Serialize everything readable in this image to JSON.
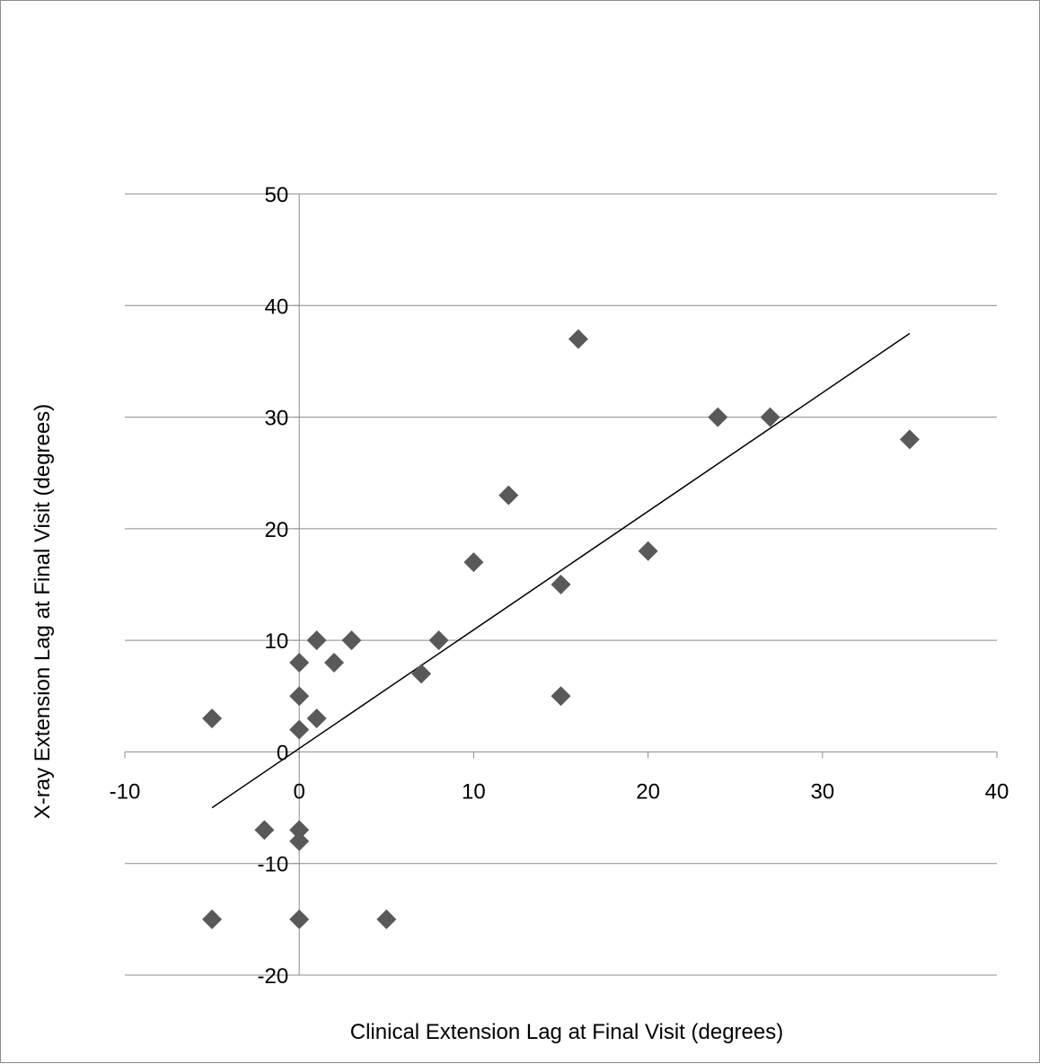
{
  "chart_data": {
    "type": "scatter",
    "title": "",
    "xlabel": "Clinical Extension Lag at Final Visit (degrees)",
    "ylabel": "X-ray Extension Lag at Final Visit (degrees)",
    "xlim": [
      -10,
      40
    ],
    "ylim": [
      -20,
      50
    ],
    "x_ticks": [
      -10,
      0,
      10,
      20,
      30,
      40
    ],
    "y_ticks": [
      -20,
      -10,
      0,
      10,
      20,
      30,
      40,
      50
    ],
    "x_tick_labels": [
      "-10",
      "0",
      "10",
      "20",
      "30",
      "40"
    ],
    "y_tick_labels": [
      "-20",
      "-10",
      "0",
      "10",
      "20",
      "30",
      "40",
      "50"
    ],
    "grid": "horizontal",
    "legend": "none",
    "marker": "diamond",
    "marker_color": "#595959",
    "series": [
      {
        "points": [
          {
            "x": -5,
            "y": 3
          },
          {
            "x": -5,
            "y": -15
          },
          {
            "x": -2,
            "y": -7
          },
          {
            "x": 0,
            "y": 8
          },
          {
            "x": 0,
            "y": 5
          },
          {
            "x": 0,
            "y": 2
          },
          {
            "x": 0,
            "y": -7
          },
          {
            "x": 0,
            "y": -8
          },
          {
            "x": 0,
            "y": -15
          },
          {
            "x": 1,
            "y": 10
          },
          {
            "x": 1,
            "y": 3
          },
          {
            "x": 2,
            "y": 8
          },
          {
            "x": 3,
            "y": 10
          },
          {
            "x": 5,
            "y": -15
          },
          {
            "x": 7,
            "y": 7
          },
          {
            "x": 8,
            "y": 10
          },
          {
            "x": 10,
            "y": 17
          },
          {
            "x": 12,
            "y": 23
          },
          {
            "x": 15,
            "y": 15
          },
          {
            "x": 15,
            "y": 5
          },
          {
            "x": 16,
            "y": 37
          },
          {
            "x": 20,
            "y": 18
          },
          {
            "x": 24,
            "y": 30
          },
          {
            "x": 27,
            "y": 30
          },
          {
            "x": 35,
            "y": 28
          }
        ]
      }
    ],
    "trendline": {
      "type": "linear",
      "x": [
        -5,
        35
      ],
      "y": [
        -5,
        37.5
      ],
      "color": "#000000"
    }
  }
}
